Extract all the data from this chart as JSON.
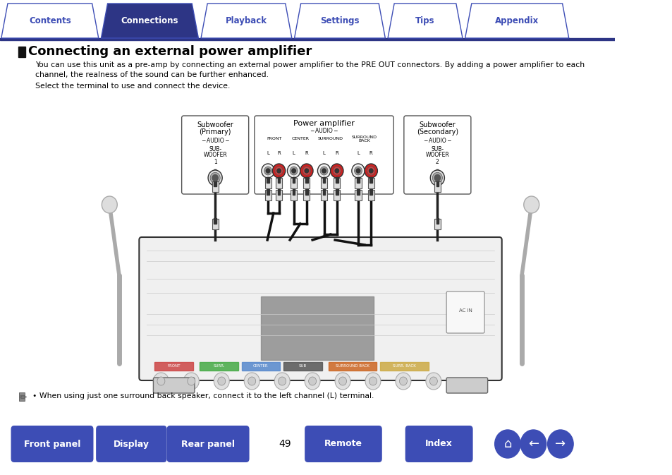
{
  "bg_color": "#ffffff",
  "tab_bar_color": "#2d3585",
  "tabs": [
    "Contents",
    "Connections",
    "Playback",
    "Settings",
    "Tips",
    "Appendix"
  ],
  "active_tab": "Connections",
  "active_tab_color": "#2d3585",
  "inactive_tab_color": "#ffffff",
  "inactive_tab_text_color": "#3d4db5",
  "active_tab_text_color": "#ffffff",
  "tab_border_color": "#3d4db5",
  "section_title": "Connecting an external power amplifier",
  "body_text_line1": "You can use this unit as a pre-amp by connecting an external power amplifier to the PRE OUT connectors. By adding a power amplifier to each",
  "body_text_line2": "channel, the realness of the sound can be further enhanced.",
  "body_text_line3": "Select the terminal to use and connect the device.",
  "note_text": "When using just one surround back speaker, connect it to the left channel (L) terminal.",
  "page_number": "49",
  "bottom_buttons": [
    "Front panel",
    "Display",
    "Rear panel",
    "Remote",
    "Index"
  ],
  "bottom_btn_color": "#3d4db5",
  "bottom_btn_text_color": "#ffffff"
}
